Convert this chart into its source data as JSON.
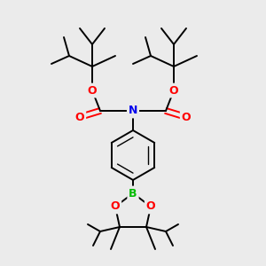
{
  "background_color": "#ebebeb",
  "atom_colors": {
    "C": "#000000",
    "N": "#0000ee",
    "O": "#ff0000",
    "B": "#00bb00"
  },
  "bond_color": "#000000",
  "bond_width": 1.4,
  "figsize": [
    3.0,
    3.0
  ],
  "dpi": 100
}
